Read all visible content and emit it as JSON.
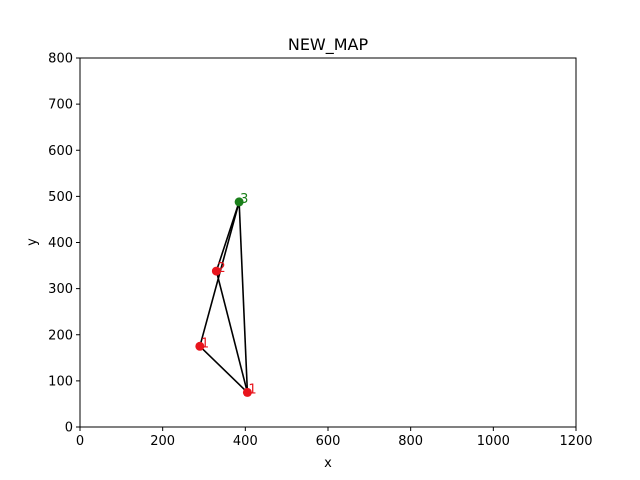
{
  "chart_data": {
    "type": "scatter",
    "title": "NEW_MAP",
    "xlabel": "x",
    "ylabel": "y",
    "xlim": [
      0,
      1200
    ],
    "ylim": [
      0,
      800
    ],
    "xticks": [
      0,
      200,
      400,
      600,
      800,
      1000,
      1200
    ],
    "yticks": [
      0,
      100,
      200,
      300,
      400,
      500,
      600,
      700,
      800
    ],
    "grid": false,
    "points": [
      {
        "x": 290,
        "y": 175,
        "label": "1",
        "color": "#e8141c"
      },
      {
        "x": 405,
        "y": 75,
        "label": "1",
        "color": "#e8141c"
      },
      {
        "x": 330,
        "y": 338,
        "label": "2",
        "color": "#e8141c"
      },
      {
        "x": 385,
        "y": 488,
        "label": "3",
        "color": "#1a7f1a"
      }
    ],
    "edges": [
      [
        0,
        3
      ],
      [
        0,
        1
      ],
      [
        1,
        3
      ],
      [
        1,
        2
      ],
      [
        2,
        3
      ]
    ],
    "edge_color": "#000000"
  }
}
